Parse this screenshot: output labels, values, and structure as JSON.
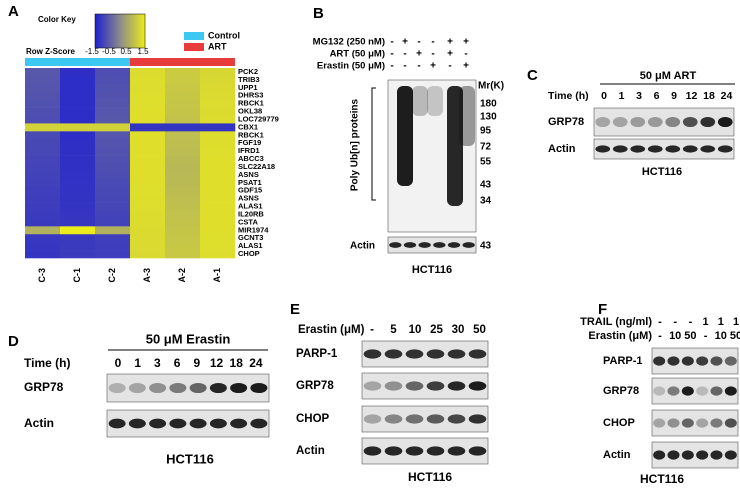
{
  "panels": {
    "A": {
      "label": "A",
      "color_key": "Color Key",
      "row_z_score": "Row Z-Score",
      "scale": [
        "-1.5",
        "-0.5",
        "0.5",
        "1.5"
      ],
      "legend": [
        "Control",
        "ART"
      ],
      "genes": [
        "PCK2",
        "TRIB3",
        "UPP1",
        "DHRS3",
        "RBCK1",
        "OKL38",
        "LOC729779",
        "CBX1",
        "RBCK1",
        "FGF19",
        "IFRD1",
        "ABCC3",
        "SLC22A18",
        "ASNS",
        "PSAT1",
        "GDF15",
        "ASNS",
        "ALAS1",
        "IL20RB",
        "CSTA",
        "MIR1974",
        "GCNT3",
        "ALAS1",
        "CHOP"
      ],
      "samples": [
        "C-3",
        "C-1",
        "C-2",
        "A-3",
        "A-2",
        "A-1"
      ]
    },
    "B": {
      "label": "B",
      "treatments": [
        {
          "name": "MG132 (250 nM)",
          "signs": [
            "-",
            "+",
            "-",
            "-",
            "+",
            "+"
          ]
        },
        {
          "name": "ART (50 μM)",
          "signs": [
            "-",
            "-",
            "+",
            "-",
            "+",
            "-"
          ]
        },
        {
          "name": "Erastin (50 μM)",
          "signs": [
            "-",
            "-",
            "-",
            "+",
            "-",
            "+"
          ]
        }
      ],
      "y_label": "Poly Ub[n] proteins",
      "mw_label": "Mr(K)",
      "markers": [
        "180",
        "130",
        "95",
        "72",
        "55",
        "43",
        "34"
      ],
      "actin": "Actin",
      "actin_marker": "43",
      "cell_line": "HCT116"
    },
    "C": {
      "label": "C",
      "treatment": "50 μM ART",
      "time_label": "Time (h)",
      "times": [
        "0",
        "1",
        "3",
        "6",
        "9",
        "12",
        "18",
        "24"
      ],
      "rows": [
        "GRP78",
        "Actin"
      ],
      "cell_line": "HCT116"
    },
    "D": {
      "label": "D",
      "treatment": "50 μM Erastin",
      "time_label": "Time (h)",
      "times": [
        "0",
        "1",
        "3",
        "6",
        "9",
        "12",
        "18",
        "24"
      ],
      "rows": [
        "GRP78",
        "Actin"
      ],
      "cell_line": "HCT116"
    },
    "E": {
      "label": "E",
      "dose_label": "Erastin (μM)",
      "doses": [
        "-",
        "5",
        "10",
        "25",
        "30",
        "50"
      ],
      "rows": [
        "PARP-1",
        "GRP78",
        "CHOP",
        "Actin"
      ],
      "cell_line": "HCT116"
    },
    "F": {
      "label": "F",
      "treatments": [
        {
          "name": "TRAIL (ng/ml)",
          "signs": [
            "-",
            "-",
            "-",
            "1",
            "1",
            "1"
          ]
        },
        {
          "name": "Erastin (μM)",
          "signs": [
            "-",
            "10",
            "50",
            "-",
            "10",
            "50"
          ]
        }
      ],
      "rows": [
        "PARP-1",
        "GRP78",
        "CHOP",
        "Actin"
      ],
      "cell_line": "HCT116"
    }
  }
}
